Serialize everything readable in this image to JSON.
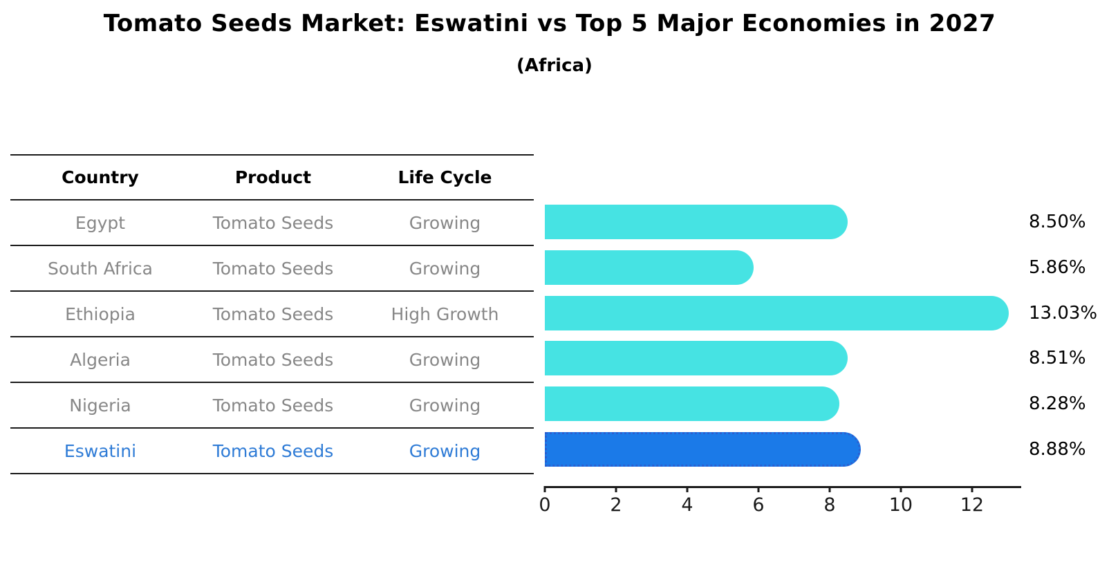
{
  "header": {
    "title": "Tomato Seeds Market: Eswatini vs Top 5 Major Economies in 2027",
    "subtitle": "(Africa)"
  },
  "table": {
    "headers": [
      "Country",
      "Product",
      "Life Cycle"
    ],
    "rows": [
      {
        "country": "Egypt",
        "product": "Tomato Seeds",
        "life_cycle": "Growing",
        "highlight": false
      },
      {
        "country": "South Africa",
        "product": "Tomato Seeds",
        "life_cycle": "Growing",
        "highlight": false
      },
      {
        "country": "Ethiopia",
        "product": "Tomato Seeds",
        "life_cycle": "High Growth",
        "highlight": false
      },
      {
        "country": "Algeria",
        "product": "Tomato Seeds",
        "life_cycle": "Growing",
        "highlight": false
      },
      {
        "country": "Nigeria",
        "product": "Tomato Seeds",
        "life_cycle": "Growing",
        "highlight": false
      },
      {
        "country": "Eswatini",
        "product": "Tomato Seeds",
        "life_cycle": "Growing",
        "highlight": true
      }
    ]
  },
  "chart_data": {
    "type": "bar",
    "orientation": "horizontal",
    "title": "Tomato Seeds Market: Eswatini vs Top 5 Major Economies in 2027 (Africa)",
    "categories": [
      "Egypt",
      "South Africa",
      "Ethiopia",
      "Algeria",
      "Nigeria",
      "Eswatini"
    ],
    "values": [
      8.5,
      5.86,
      13.03,
      8.51,
      8.28,
      8.88
    ],
    "value_labels": [
      "8.50%",
      "5.86%",
      "13.03%",
      "8.51%",
      "8.28%",
      "8.88%"
    ],
    "highlight_index": 5,
    "xlabel": "",
    "ylabel": "",
    "xticks": [
      0,
      2,
      4,
      6,
      8,
      10,
      12
    ],
    "xlim": [
      0,
      13.38
    ],
    "grid": false,
    "legend": false,
    "bar_color": "#46e3e3",
    "highlight_bar_color": "#1b7ae8",
    "highlight_edge_color": "#2a5fd0",
    "highlight_text_color": "#2e7bd6",
    "row_text_color": "#878787"
  }
}
